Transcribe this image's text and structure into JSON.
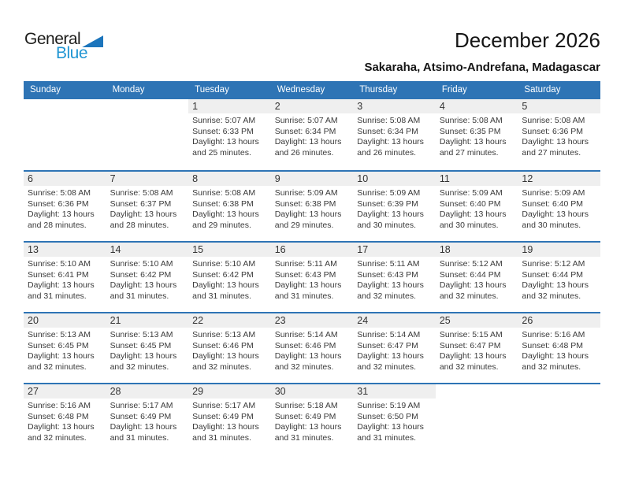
{
  "logo": {
    "part1": "General",
    "part2": "Blue",
    "triangle_icon": "flag-triangle"
  },
  "header": {
    "title": "December 2026",
    "subtitle": "Sakaraha, Atsimo-Andrefana, Madagascar"
  },
  "colors": {
    "header_bg": "#2e74b5",
    "day_strip_bg": "#efefef",
    "logo_blue": "#2196d3",
    "logo_triangle": "#1c75bc"
  },
  "weekday_headers": [
    "Sunday",
    "Monday",
    "Tuesday",
    "Wednesday",
    "Thursday",
    "Friday",
    "Saturday"
  ],
  "weeks": [
    [
      null,
      null,
      {
        "num": "1",
        "sunrise": "Sunrise: 5:07 AM",
        "sunset": "Sunset: 6:33 PM",
        "daylight_line1": "Daylight: 13 hours",
        "daylight_line2": "and 25 minutes."
      },
      {
        "num": "2",
        "sunrise": "Sunrise: 5:07 AM",
        "sunset": "Sunset: 6:34 PM",
        "daylight_line1": "Daylight: 13 hours",
        "daylight_line2": "and 26 minutes."
      },
      {
        "num": "3",
        "sunrise": "Sunrise: 5:08 AM",
        "sunset": "Sunset: 6:34 PM",
        "daylight_line1": "Daylight: 13 hours",
        "daylight_line2": "and 26 minutes."
      },
      {
        "num": "4",
        "sunrise": "Sunrise: 5:08 AM",
        "sunset": "Sunset: 6:35 PM",
        "daylight_line1": "Daylight: 13 hours",
        "daylight_line2": "and 27 minutes."
      },
      {
        "num": "5",
        "sunrise": "Sunrise: 5:08 AM",
        "sunset": "Sunset: 6:36 PM",
        "daylight_line1": "Daylight: 13 hours",
        "daylight_line2": "and 27 minutes."
      }
    ],
    [
      {
        "num": "6",
        "sunrise": "Sunrise: 5:08 AM",
        "sunset": "Sunset: 6:36 PM",
        "daylight_line1": "Daylight: 13 hours",
        "daylight_line2": "and 28 minutes."
      },
      {
        "num": "7",
        "sunrise": "Sunrise: 5:08 AM",
        "sunset": "Sunset: 6:37 PM",
        "daylight_line1": "Daylight: 13 hours",
        "daylight_line2": "and 28 minutes."
      },
      {
        "num": "8",
        "sunrise": "Sunrise: 5:08 AM",
        "sunset": "Sunset: 6:38 PM",
        "daylight_line1": "Daylight: 13 hours",
        "daylight_line2": "and 29 minutes."
      },
      {
        "num": "9",
        "sunrise": "Sunrise: 5:09 AM",
        "sunset": "Sunset: 6:38 PM",
        "daylight_line1": "Daylight: 13 hours",
        "daylight_line2": "and 29 minutes."
      },
      {
        "num": "10",
        "sunrise": "Sunrise: 5:09 AM",
        "sunset": "Sunset: 6:39 PM",
        "daylight_line1": "Daylight: 13 hours",
        "daylight_line2": "and 30 minutes."
      },
      {
        "num": "11",
        "sunrise": "Sunrise: 5:09 AM",
        "sunset": "Sunset: 6:40 PM",
        "daylight_line1": "Daylight: 13 hours",
        "daylight_line2": "and 30 minutes."
      },
      {
        "num": "12",
        "sunrise": "Sunrise: 5:09 AM",
        "sunset": "Sunset: 6:40 PM",
        "daylight_line1": "Daylight: 13 hours",
        "daylight_line2": "and 30 minutes."
      }
    ],
    [
      {
        "num": "13",
        "sunrise": "Sunrise: 5:10 AM",
        "sunset": "Sunset: 6:41 PM",
        "daylight_line1": "Daylight: 13 hours",
        "daylight_line2": "and 31 minutes."
      },
      {
        "num": "14",
        "sunrise": "Sunrise: 5:10 AM",
        "sunset": "Sunset: 6:42 PM",
        "daylight_line1": "Daylight: 13 hours",
        "daylight_line2": "and 31 minutes."
      },
      {
        "num": "15",
        "sunrise": "Sunrise: 5:10 AM",
        "sunset": "Sunset: 6:42 PM",
        "daylight_line1": "Daylight: 13 hours",
        "daylight_line2": "and 31 minutes."
      },
      {
        "num": "16",
        "sunrise": "Sunrise: 5:11 AM",
        "sunset": "Sunset: 6:43 PM",
        "daylight_line1": "Daylight: 13 hours",
        "daylight_line2": "and 31 minutes."
      },
      {
        "num": "17",
        "sunrise": "Sunrise: 5:11 AM",
        "sunset": "Sunset: 6:43 PM",
        "daylight_line1": "Daylight: 13 hours",
        "daylight_line2": "and 32 minutes."
      },
      {
        "num": "18",
        "sunrise": "Sunrise: 5:12 AM",
        "sunset": "Sunset: 6:44 PM",
        "daylight_line1": "Daylight: 13 hours",
        "daylight_line2": "and 32 minutes."
      },
      {
        "num": "19",
        "sunrise": "Sunrise: 5:12 AM",
        "sunset": "Sunset: 6:44 PM",
        "daylight_line1": "Daylight: 13 hours",
        "daylight_line2": "and 32 minutes."
      }
    ],
    [
      {
        "num": "20",
        "sunrise": "Sunrise: 5:13 AM",
        "sunset": "Sunset: 6:45 PM",
        "daylight_line1": "Daylight: 13 hours",
        "daylight_line2": "and 32 minutes."
      },
      {
        "num": "21",
        "sunrise": "Sunrise: 5:13 AM",
        "sunset": "Sunset: 6:45 PM",
        "daylight_line1": "Daylight: 13 hours",
        "daylight_line2": "and 32 minutes."
      },
      {
        "num": "22",
        "sunrise": "Sunrise: 5:13 AM",
        "sunset": "Sunset: 6:46 PM",
        "daylight_line1": "Daylight: 13 hours",
        "daylight_line2": "and 32 minutes."
      },
      {
        "num": "23",
        "sunrise": "Sunrise: 5:14 AM",
        "sunset": "Sunset: 6:46 PM",
        "daylight_line1": "Daylight: 13 hours",
        "daylight_line2": "and 32 minutes."
      },
      {
        "num": "24",
        "sunrise": "Sunrise: 5:14 AM",
        "sunset": "Sunset: 6:47 PM",
        "daylight_line1": "Daylight: 13 hours",
        "daylight_line2": "and 32 minutes."
      },
      {
        "num": "25",
        "sunrise": "Sunrise: 5:15 AM",
        "sunset": "Sunset: 6:47 PM",
        "daylight_line1": "Daylight: 13 hours",
        "daylight_line2": "and 32 minutes."
      },
      {
        "num": "26",
        "sunrise": "Sunrise: 5:16 AM",
        "sunset": "Sunset: 6:48 PM",
        "daylight_line1": "Daylight: 13 hours",
        "daylight_line2": "and 32 minutes."
      }
    ],
    [
      {
        "num": "27",
        "sunrise": "Sunrise: 5:16 AM",
        "sunset": "Sunset: 6:48 PM",
        "daylight_line1": "Daylight: 13 hours",
        "daylight_line2": "and 32 minutes."
      },
      {
        "num": "28",
        "sunrise": "Sunrise: 5:17 AM",
        "sunset": "Sunset: 6:49 PM",
        "daylight_line1": "Daylight: 13 hours",
        "daylight_line2": "and 31 minutes."
      },
      {
        "num": "29",
        "sunrise": "Sunrise: 5:17 AM",
        "sunset": "Sunset: 6:49 PM",
        "daylight_line1": "Daylight: 13 hours",
        "daylight_line2": "and 31 minutes."
      },
      {
        "num": "30",
        "sunrise": "Sunrise: 5:18 AM",
        "sunset": "Sunset: 6:49 PM",
        "daylight_line1": "Daylight: 13 hours",
        "daylight_line2": "and 31 minutes."
      },
      {
        "num": "31",
        "sunrise": "Sunrise: 5:19 AM",
        "sunset": "Sunset: 6:50 PM",
        "daylight_line1": "Daylight: 13 hours",
        "daylight_line2": "and 31 minutes."
      },
      null,
      null
    ]
  ]
}
